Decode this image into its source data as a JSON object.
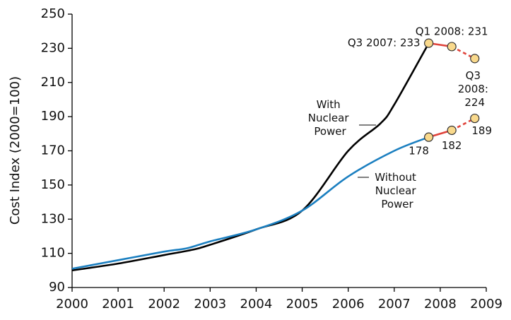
{
  "chart_data": {
    "type": "line",
    "ylabel": "Cost Index (2000=100)",
    "xlim": [
      2000,
      2009
    ],
    "xticks": [
      2000,
      2001,
      2002,
      2003,
      2004,
      2005,
      2006,
      2007,
      2008,
      2009
    ],
    "ylim": [
      90,
      250
    ],
    "yticks": [
      90,
      110,
      130,
      150,
      170,
      190,
      210,
      230,
      250
    ],
    "grid": false,
    "recent_color": "#e0443c",
    "marker_color": "#f9d98c",
    "series": [
      {
        "name": "With Nuclear Power",
        "color": "#000000",
        "x": [
          2000,
          2001,
          2002,
          2002.6,
          2003,
          2004,
          2005,
          2006,
          2006.7,
          2007,
          2007.75
        ],
        "values": [
          100,
          104,
          109,
          112,
          115,
          124,
          135,
          170,
          186,
          197,
          233
        ],
        "points": {
          "x": [
            2007.75,
            2008.25,
            2008.75
          ],
          "values": [
            233,
            231,
            224
          ],
          "value_labels": [
            "Q3 2007: 233",
            "Q1 2008: 231",
            "Q3 2008: 224"
          ]
        }
      },
      {
        "name": "Without Nuclear Power",
        "color": "#1b7fc0",
        "x": [
          2000,
          2001,
          2002,
          2002.5,
          2003,
          2004,
          2005,
          2006,
          2007,
          2007.75
        ],
        "values": [
          101,
          106,
          111,
          113,
          117,
          124,
          135,
          155,
          170,
          178
        ],
        "points": {
          "x": [
            2007.75,
            2008.25,
            2008.75
          ],
          "values": [
            178,
            182,
            189
          ],
          "value_labels": [
            "178",
            "182",
            "189"
          ]
        }
      }
    ]
  }
}
